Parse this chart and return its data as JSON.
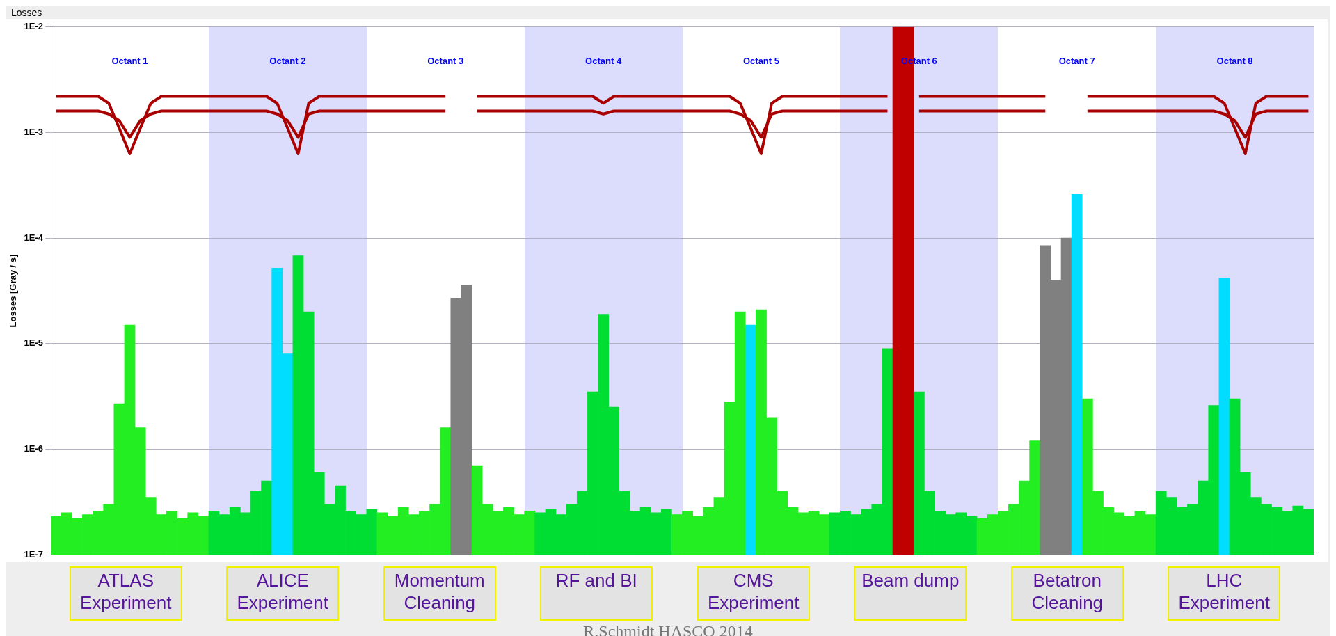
{
  "chart_data": {
    "type": "bar",
    "title": "Losses",
    "ylabel": "Losses [Gray / s]",
    "log": "y",
    "grid": "y",
    "legend": false,
    "tick_labels": "y",
    "ylim": [
      1e-07,
      0.01
    ],
    "yticks": [
      {
        "value": 1e-07,
        "label": "1E-7"
      },
      {
        "value": 1e-06,
        "label": "1E-6"
      },
      {
        "value": 1e-05,
        "label": "1E-5"
      },
      {
        "value": 0.0001,
        "label": "1E-4"
      },
      {
        "value": 0.001,
        "label": "1E-3"
      },
      {
        "value": 0.01,
        "label": "1E-2"
      }
    ],
    "categories": [
      null,
      null,
      null,
      null,
      null,
      null,
      null,
      null,
      null,
      null,
      null,
      null,
      null,
      null,
      null,
      null,
      null,
      null,
      null,
      null,
      null,
      null,
      null,
      null,
      null,
      null,
      null,
      null,
      null,
      null,
      null,
      null,
      null,
      null,
      null,
      null,
      null,
      null,
      null,
      null,
      null,
      null,
      null,
      null,
      null,
      null,
      null,
      null,
      null,
      null,
      null,
      null,
      null,
      null,
      null,
      null,
      null,
      null,
      null,
      null,
      null,
      null,
      null,
      null,
      null,
      null,
      null,
      null,
      null,
      null,
      null,
      null,
      null,
      null,
      null,
      null,
      null,
      null,
      null,
      null,
      null,
      null,
      null,
      null,
      null,
      null,
      null,
      null,
      null,
      null,
      null,
      null,
      null,
      null,
      null,
      null,
      null,
      null,
      null,
      null,
      null,
      null,
      null,
      null,
      null,
      null,
      null,
      null,
      null,
      null,
      null,
      null,
      null,
      null,
      null,
      null,
      null,
      null,
      null,
      null
    ],
    "series": [
      {
        "values": [
          2.3e-07,
          2.5e-07,
          2.2e-07,
          2.4e-07,
          2.6e-07,
          3e-07,
          2.7e-06,
          1.5e-05,
          1.6e-06,
          3.5e-07,
          2.4e-07,
          2.6e-07,
          2.2e-07,
          2.5e-07,
          2.3e-07,
          2.6e-07,
          2.4e-07,
          2.8e-07,
          2.5e-07,
          4e-07,
          5e-07,
          5.2e-05,
          8e-06,
          6.8e-05,
          2e-05,
          6e-07,
          3e-07,
          4.5e-07,
          2.6e-07,
          2.4e-07,
          2.7e-07,
          2.5e-07,
          2.3e-07,
          2.8e-07,
          2.4e-07,
          2.6e-07,
          3e-07,
          1.6e-06,
          2.7e-05,
          3.6e-05,
          7e-07,
          3e-07,
          2.6e-07,
          2.8e-07,
          2.4e-07,
          2.6e-07,
          2.5e-07,
          2.7e-07,
          2.4e-07,
          3e-07,
          4e-07,
          3.5e-06,
          1.9e-05,
          2.5e-06,
          4e-07,
          2.6e-07,
          2.8e-07,
          2.5e-07,
          2.7e-07,
          2.4e-07,
          2.6e-07,
          2.3e-07,
          2.8e-07,
          3.5e-07,
          2.8e-06,
          2e-05,
          1.5e-05,
          2.1e-05,
          2e-06,
          4e-07,
          2.8e-07,
          2.5e-07,
          2.6e-07,
          2.4e-07,
          2.5e-07,
          2.6e-07,
          2.4e-07,
          2.7e-07,
          3e-07,
          9e-06,
          0.01,
          0.01,
          3.5e-06,
          4e-07,
          2.6e-07,
          2.4e-07,
          2.5e-07,
          2.3e-07,
          2.2e-07,
          2.4e-07,
          2.6e-07,
          3e-07,
          5e-07,
          1.2e-06,
          8.5e-05,
          4e-05,
          0.0001,
          0.00026,
          3e-06,
          4e-07,
          2.8e-07,
          2.5e-07,
          2.3e-07,
          2.6e-07,
          2.4e-07,
          4e-07,
          3.5e-07,
          2.8e-07,
          3e-07,
          5e-07,
          2.6e-06,
          4.2e-05,
          3e-06,
          6e-07,
          3.5e-07,
          3e-07,
          2.8e-07,
          2.6e-07,
          2.9e-07,
          2.7e-07
        ],
        "colors": [
          "#22ee22",
          "#22ee22",
          "#22ee22",
          "#22ee22",
          "#22ee22",
          "#22ee22",
          "#22ee22",
          "#22ee22",
          "#22ee22",
          "#22ee22",
          "#22ee22",
          "#22ee22",
          "#22ee22",
          "#22ee22",
          "#22ee22",
          "#00dd33",
          "#00dd33",
          "#00dd33",
          "#00dd33",
          "#00dd33",
          "#00dd33",
          "#00ddff",
          "#00ddff",
          "#00dd33",
          "#00dd33",
          "#00dd33",
          "#00dd33",
          "#00dd33",
          "#00dd33",
          "#00dd33",
          "#00dd33",
          "#22ee22",
          "#22ee22",
          "#22ee22",
          "#22ee22",
          "#22ee22",
          "#22ee22",
          "#22ee22",
          "#808080",
          "#808080",
          "#22ee22",
          "#22ee22",
          "#22ee22",
          "#22ee22",
          "#22ee22",
          "#22ee22",
          "#00dd33",
          "#00dd33",
          "#00dd33",
          "#00dd33",
          "#00dd33",
          "#00dd33",
          "#00dd33",
          "#00dd33",
          "#00dd33",
          "#00dd33",
          "#00dd33",
          "#00dd33",
          "#00dd33",
          "#22ee22",
          "#22ee22",
          "#22ee22",
          "#22ee22",
          "#22ee22",
          "#22ee22",
          "#22ee22",
          "#00ddff",
          "#22ee22",
          "#22ee22",
          "#22ee22",
          "#22ee22",
          "#22ee22",
          "#22ee22",
          "#22ee22",
          "#00dd33",
          "#00dd33",
          "#00dd33",
          "#00dd33",
          "#00dd33",
          "#00dd33",
          "#c00000",
          "#c00000",
          "#00dd33",
          "#00dd33",
          "#00dd33",
          "#00dd33",
          "#00dd33",
          "#00dd33",
          "#22ee22",
          "#22ee22",
          "#22ee22",
          "#22ee22",
          "#22ee22",
          "#22ee22",
          "#808080",
          "#808080",
          "#808080",
          "#00ddff",
          "#22ee22",
          "#22ee22",
          "#22ee22",
          "#22ee22",
          "#22ee22",
          "#22ee22",
          "#22ee22",
          "#00dd33",
          "#00dd33",
          "#00dd33",
          "#00dd33",
          "#00dd33",
          "#00dd33",
          "#00ddff",
          "#00dd33",
          "#00dd33",
          "#00dd33",
          "#00dd33",
          "#00dd33",
          "#00dd33",
          "#00dd33",
          "#00dd33"
        ]
      },
      {
        "type": "line",
        "color": "#aa0000",
        "values": [
          0.0022,
          0.0022,
          0.0022,
          0.0022,
          0.0022,
          0.0019,
          0.0011,
          0.00063,
          0.0011,
          0.0019,
          0.0022,
          0.0022,
          0.0022,
          0.0022,
          0.0022,
          0.0022,
          0.0022,
          0.0022,
          0.0022,
          0.0022,
          0.0022,
          0.0019,
          0.0011,
          0.00063,
          0.0019,
          0.0022,
          0.0022,
          0.0022,
          0.0022,
          0.0022,
          0.0022,
          0.0022,
          0.0022,
          0.0022,
          0.0022,
          0.0022,
          0.0022,
          0.0022,
          null,
          null,
          0.0022,
          0.0022,
          0.0022,
          0.0022,
          0.0022,
          0.0022,
          0.0022,
          0.0022,
          0.0022,
          0.0022,
          0.0022,
          0.0022,
          0.0019,
          0.0022,
          0.0022,
          0.0022,
          0.0022,
          0.0022,
          0.0022,
          0.0022,
          0.0022,
          0.0022,
          0.0022,
          0.0022,
          0.0022,
          0.0019,
          0.0011,
          0.00063,
          0.0019,
          0.0022,
          0.0022,
          0.0022,
          0.0022,
          0.0022,
          0.0022,
          0.0022,
          0.0022,
          0.0022,
          0.0022,
          0.0022,
          null,
          null,
          0.0022,
          0.0022,
          0.0022,
          0.0022,
          0.0022,
          0.0022,
          0.0022,
          0.0022,
          0.0022,
          0.0022,
          0.0022,
          0.0022,
          0.0022,
          null,
          null,
          null,
          0.0022,
          0.0022,
          0.0022,
          0.0022,
          0.0022,
          0.0022,
          0.0022,
          0.0022,
          0.0022,
          0.0022,
          0.0022,
          0.0022,
          0.0022,
          0.0019,
          0.0011,
          0.00063,
          0.0019,
          0.0022,
          0.0022,
          0.0022,
          0.0022,
          0.0022
        ]
      },
      {
        "type": "line",
        "color": "#aa0000",
        "values": [
          0.0016,
          0.0016,
          0.0016,
          0.0016,
          0.0016,
          0.0015,
          0.0013,
          0.0009,
          0.0013,
          0.0015,
          0.0016,
          0.0016,
          0.0016,
          0.0016,
          0.0016,
          0.0016,
          0.0016,
          0.0016,
          0.0016,
          0.0016,
          0.0016,
          0.0015,
          0.0013,
          0.0009,
          0.0015,
          0.0016,
          0.0016,
          0.0016,
          0.0016,
          0.0016,
          0.0016,
          0.0016,
          0.0016,
          0.0016,
          0.0016,
          0.0016,
          0.0016,
          0.0016,
          null,
          null,
          0.0016,
          0.0016,
          0.0016,
          0.0016,
          0.0016,
          0.0016,
          0.0016,
          0.0016,
          0.0016,
          0.0016,
          0.0016,
          0.0016,
          0.0015,
          0.0016,
          0.0016,
          0.0016,
          0.0016,
          0.0016,
          0.0016,
          0.0016,
          0.0016,
          0.0016,
          0.0016,
          0.0016,
          0.0016,
          0.0015,
          0.0013,
          0.0009,
          0.0015,
          0.0016,
          0.0016,
          0.0016,
          0.0016,
          0.0016,
          0.0016,
          0.0016,
          0.0016,
          0.0016,
          0.0016,
          0.0016,
          null,
          null,
          0.0016,
          0.0016,
          0.0016,
          0.0016,
          0.0016,
          0.0016,
          0.0016,
          0.0016,
          0.0016,
          0.0016,
          0.0016,
          0.0016,
          0.0016,
          null,
          null,
          null,
          0.0016,
          0.0016,
          0.0016,
          0.0016,
          0.0016,
          0.0016,
          0.0016,
          0.0016,
          0.0016,
          0.0016,
          0.0016,
          0.0016,
          0.0016,
          0.0015,
          0.0013,
          0.0009,
          0.0015,
          0.0016,
          0.0016,
          0.0016,
          0.0016,
          0.0016
        ]
      }
    ],
    "annotations": [
      "Octant 1",
      "Octant 2",
      "Octant 3",
      "Octant 4",
      "Octant 5",
      "Octant 6",
      "Octant 7",
      "Octant 8",
      "ATLAS Experiment",
      "ALICE Experiment",
      "Momentum Cleaning",
      "RF and BI",
      "CMS Experiment",
      "Beam dump",
      "Betatron Cleaning",
      "LHC Experiment",
      "R.Schmidt     HASCO 2014"
    ]
  }
}
